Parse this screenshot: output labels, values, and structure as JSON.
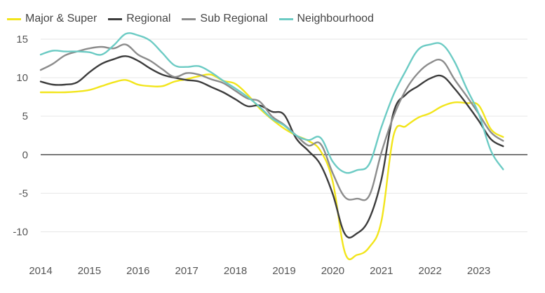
{
  "chart_data": {
    "type": "line",
    "title": "",
    "xlabel": "",
    "ylabel": "",
    "ylim": [
      -13.5,
      16
    ],
    "xlim": [
      2014,
      2024
    ],
    "yticks": [
      15,
      10,
      5,
      0,
      -5,
      -10
    ],
    "xticks": [
      "2014",
      "2015",
      "2016",
      "2017",
      "2018",
      "2019",
      "2020",
      "2021",
      "2022",
      "2023"
    ],
    "grid": true,
    "legend_position": "top-left",
    "x": [
      2014.0,
      2014.25,
      2014.5,
      2014.75,
      2015.0,
      2015.25,
      2015.5,
      2015.75,
      2016.0,
      2016.25,
      2016.5,
      2016.75,
      2017.0,
      2017.25,
      2017.5,
      2017.75,
      2018.0,
      2018.25,
      2018.5,
      2018.75,
      2019.0,
      2019.25,
      2019.5,
      2019.75,
      2020.0,
      2020.25,
      2020.5,
      2020.75,
      2021.0,
      2021.25,
      2021.5,
      2021.75,
      2022.0,
      2022.25,
      2022.5,
      2022.75,
      2023.0,
      2023.25,
      2023.5,
      2023.75
    ],
    "series": [
      {
        "name": "Major & Super",
        "color": "#f2e51b",
        "values": [
          8.1,
          8.1,
          8.1,
          8.2,
          8.4,
          8.9,
          9.4,
          9.7,
          9.1,
          8.9,
          8.9,
          9.5,
          9.8,
          10.2,
          10.4,
          9.6,
          9.2,
          7.8,
          6.0,
          4.6,
          3.4,
          2.5,
          1.8,
          0.5,
          -3.5,
          -12.7,
          -13.0,
          -12.0,
          -8.6,
          2.5,
          3.7,
          4.8,
          5.4,
          6.3,
          6.8,
          6.7,
          6.4,
          3.3,
          2.3,
          null
        ]
      },
      {
        "name": "Regional",
        "color": "#3c3c3c",
        "values": [
          9.5,
          9.1,
          9.1,
          9.4,
          10.7,
          11.8,
          12.4,
          12.8,
          12.2,
          11.2,
          10.4,
          10.0,
          9.7,
          9.5,
          8.8,
          8.1,
          7.2,
          6.3,
          6.4,
          5.6,
          5.2,
          2.1,
          0.5,
          -1.3,
          -5.1,
          -10.3,
          -10.2,
          -8.3,
          -3.2,
          5.5,
          7.8,
          8.9,
          9.9,
          10.2,
          8.6,
          6.6,
          4.4,
          2.0,
          1.1,
          null
        ]
      },
      {
        "name": "Sub Regional",
        "color": "#8c8c8c",
        "values": [
          11.0,
          11.8,
          12.9,
          13.4,
          13.8,
          14.0,
          13.8,
          14.3,
          13.0,
          12.2,
          11.1,
          10.1,
          10.6,
          10.4,
          9.8,
          9.3,
          8.3,
          7.3,
          6.9,
          5.0,
          3.9,
          2.5,
          1.2,
          1.4,
          -2.4,
          -5.5,
          -5.7,
          -5.3,
          0.3,
          5.0,
          8.4,
          10.6,
          11.9,
          12.2,
          9.8,
          7.6,
          5.3,
          2.9,
          1.8,
          null
        ]
      },
      {
        "name": "Neighbourhood",
        "color": "#6ccbc4",
        "values": [
          13.0,
          13.5,
          13.4,
          13.4,
          13.3,
          13.0,
          14.2,
          15.7,
          15.5,
          14.8,
          13.2,
          11.6,
          11.4,
          11.5,
          10.7,
          9.6,
          8.6,
          7.5,
          6.2,
          4.7,
          3.8,
          2.5,
          1.9,
          2.2,
          -0.9,
          -2.3,
          -2.0,
          -1.2,
          3.6,
          7.8,
          10.9,
          13.6,
          14.3,
          14.3,
          12.1,
          8.6,
          5.3,
          0.5,
          -1.9,
          null
        ]
      }
    ]
  }
}
